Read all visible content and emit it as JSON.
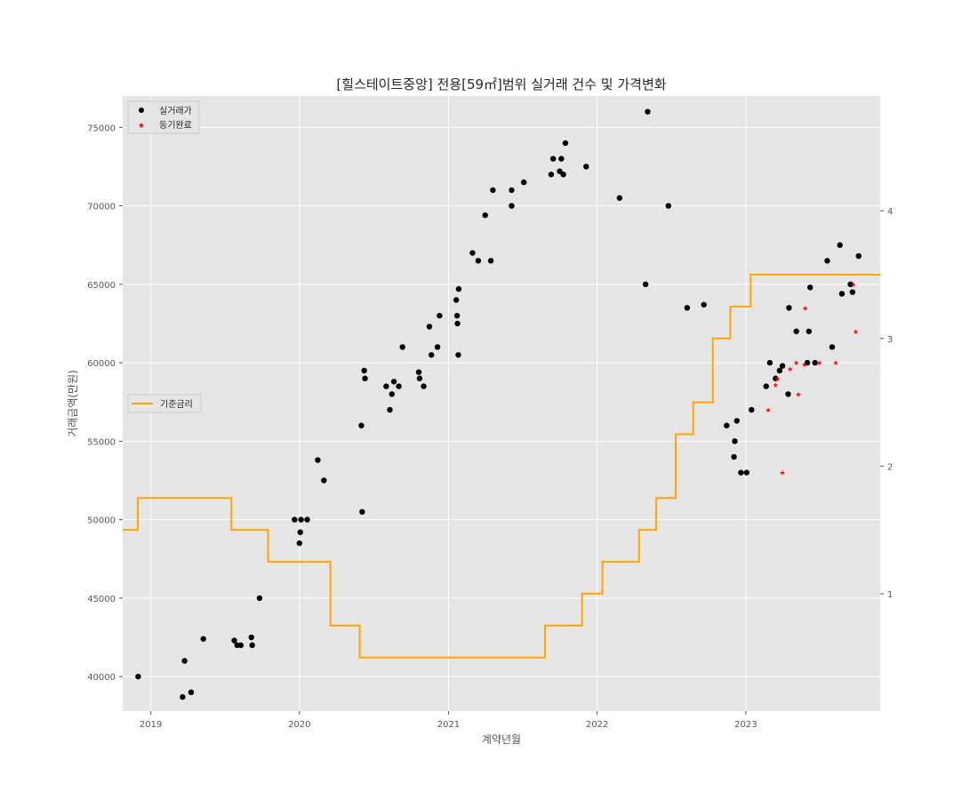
{
  "chart_data": {
    "type": "scatter",
    "title": "[힐스테이트중앙] 전용[59㎡]범위 실거래 건수 및 가격변화",
    "xlabel": "계약년월",
    "ylabel": "거래금액(만원)",
    "x_ticks": [
      "2019",
      "2020",
      "2021",
      "2022",
      "2023"
    ],
    "y_ticks": [
      40000,
      45000,
      50000,
      55000,
      60000,
      65000,
      70000,
      75000
    ],
    "y2_ticks": [
      1,
      2,
      3,
      4
    ],
    "xlim": [
      "2018-10-24",
      "2023-11-27"
    ],
    "ylim": [
      37800,
      77000
    ],
    "y2lim": [
      0.08,
      4.9
    ],
    "grid": true,
    "colors": {
      "background": "#e5e5e5",
      "grid": "#ffffff",
      "trade": "#000000",
      "registered": "#ff0000",
      "rate": "#ffa500"
    },
    "legends": [
      {
        "placement": "top-left",
        "items": [
          {
            "label": "실거래가",
            "marker": "circle",
            "color": "#000000"
          },
          {
            "label": "등기완료",
            "marker": "star",
            "color": "#ff0000"
          }
        ]
      },
      {
        "placement": "center-left",
        "items": [
          {
            "label": "기준금리",
            "marker": "line",
            "color": "#ffa500"
          }
        ]
      }
    ],
    "series": [
      {
        "name": "실거래가",
        "marker": "circle",
        "color": "#000000",
        "points": [
          [
            "2018-12-01",
            40000
          ],
          [
            "2019-03-20",
            38700
          ],
          [
            "2019-03-25",
            41000
          ],
          [
            "2019-04-10",
            39000
          ],
          [
            "2019-05-10",
            42400
          ],
          [
            "2019-07-25",
            42300
          ],
          [
            "2019-08-01",
            42000
          ],
          [
            "2019-08-10",
            42000
          ],
          [
            "2019-09-05",
            42500
          ],
          [
            "2019-09-07",
            42000
          ],
          [
            "2019-09-25",
            45000
          ],
          [
            "2019-12-20",
            50000
          ],
          [
            "2020-01-01",
            48500
          ],
          [
            "2020-01-03",
            49200
          ],
          [
            "2020-01-05",
            50000
          ],
          [
            "2020-01-20",
            50000
          ],
          [
            "2020-02-15",
            53800
          ],
          [
            "2020-03-01",
            52500
          ],
          [
            "2020-06-01",
            56000
          ],
          [
            "2020-06-03",
            50500
          ],
          [
            "2020-06-08",
            59500
          ],
          [
            "2020-06-10",
            59000
          ],
          [
            "2020-08-01",
            58500
          ],
          [
            "2020-08-10",
            57000
          ],
          [
            "2020-08-15",
            58000
          ],
          [
            "2020-08-20",
            58800
          ],
          [
            "2020-09-01",
            58500
          ],
          [
            "2020-09-10",
            61000
          ],
          [
            "2020-10-20",
            59400
          ],
          [
            "2020-10-22",
            59000
          ],
          [
            "2020-11-01",
            58500
          ],
          [
            "2020-11-15",
            62300
          ],
          [
            "2020-11-20",
            60500
          ],
          [
            "2020-12-05",
            61000
          ],
          [
            "2020-12-10",
            63000
          ],
          [
            "2021-01-20",
            64000
          ],
          [
            "2021-01-22",
            63000
          ],
          [
            "2021-01-23",
            62500
          ],
          [
            "2021-01-25",
            60500
          ],
          [
            "2021-01-26",
            64700
          ],
          [
            "2021-03-01",
            67000
          ],
          [
            "2021-03-15",
            66500
          ],
          [
            "2021-04-01",
            69400
          ],
          [
            "2021-04-15",
            66500
          ],
          [
            "2021-04-20",
            71000
          ],
          [
            "2021-06-05",
            71000
          ],
          [
            "2021-06-05",
            70000
          ],
          [
            "2021-07-05",
            71500
          ],
          [
            "2021-09-10",
            72000
          ],
          [
            "2021-09-15",
            73000
          ],
          [
            "2021-10-01",
            72200
          ],
          [
            "2021-10-05",
            73000
          ],
          [
            "2021-10-10",
            72000
          ],
          [
            "2021-10-15",
            74000
          ],
          [
            "2021-12-05",
            72500
          ],
          [
            "2022-02-25",
            70500
          ],
          [
            "2022-04-30",
            65000
          ],
          [
            "2022-05-05",
            76000
          ],
          [
            "2022-06-25",
            70000
          ],
          [
            "2022-08-10",
            63500
          ],
          [
            "2022-09-20",
            63700
          ],
          [
            "2022-11-15",
            56000
          ],
          [
            "2022-12-05",
            55000
          ],
          [
            "2022-12-03",
            54000
          ],
          [
            "2022-12-10",
            56300
          ],
          [
            "2022-12-20",
            53000
          ],
          [
            "2023-01-03",
            53000
          ],
          [
            "2023-01-15",
            57000
          ],
          [
            "2023-02-20",
            58500
          ],
          [
            "2023-03-01",
            60000
          ],
          [
            "2023-03-15",
            59000
          ],
          [
            "2023-03-25",
            59500
          ],
          [
            "2023-04-01",
            59800
          ],
          [
            "2023-04-15",
            58000
          ],
          [
            "2023-04-17",
            63500
          ],
          [
            "2023-05-05",
            62000
          ],
          [
            "2023-06-01",
            60000
          ],
          [
            "2023-06-05",
            62000
          ],
          [
            "2023-06-08",
            64800
          ],
          [
            "2023-06-20",
            60000
          ],
          [
            "2023-07-20",
            66500
          ],
          [
            "2023-08-01",
            61000
          ],
          [
            "2023-08-20",
            67500
          ],
          [
            "2023-08-25",
            64400
          ],
          [
            "2023-09-15",
            65000
          ],
          [
            "2023-09-20",
            64500
          ],
          [
            "2023-10-05",
            66800
          ]
        ]
      },
      {
        "name": "등기완료",
        "marker": "star",
        "color": "#ff0000",
        "points": [
          [
            "2023-02-25",
            57000
          ],
          [
            "2023-03-15",
            58600
          ],
          [
            "2023-03-20",
            59000
          ],
          [
            "2023-04-01",
            53000
          ],
          [
            "2023-04-20",
            59600
          ],
          [
            "2023-05-05",
            60000
          ],
          [
            "2023-05-10",
            58000
          ],
          [
            "2023-05-25",
            59900
          ],
          [
            "2023-05-27",
            63500
          ],
          [
            "2023-07-01",
            60000
          ],
          [
            "2023-08-10",
            60000
          ],
          [
            "2023-09-22",
            65000
          ],
          [
            "2023-09-28",
            62000
          ]
        ]
      }
    ],
    "rate_series": {
      "name": "기준금리",
      "color": "#ffa500",
      "axis": "right",
      "steps": [
        [
          "2018-10-24",
          1.5
        ],
        [
          "2018-11-30",
          1.75
        ],
        [
          "2019-07-18",
          1.5
        ],
        [
          "2019-10-16",
          1.25
        ],
        [
          "2020-03-17",
          0.75
        ],
        [
          "2020-05-28",
          0.5
        ],
        [
          "2021-08-26",
          0.75
        ],
        [
          "2021-11-25",
          1.0
        ],
        [
          "2022-01-14",
          1.25
        ],
        [
          "2022-04-14",
          1.5
        ],
        [
          "2022-05-26",
          1.75
        ],
        [
          "2022-07-13",
          2.25
        ],
        [
          "2022-08-25",
          2.5
        ],
        [
          "2022-10-12",
          3.0
        ],
        [
          "2022-11-24",
          3.25
        ],
        [
          "2023-01-13",
          3.5
        ],
        [
          "2023-11-27",
          3.5
        ]
      ]
    }
  }
}
